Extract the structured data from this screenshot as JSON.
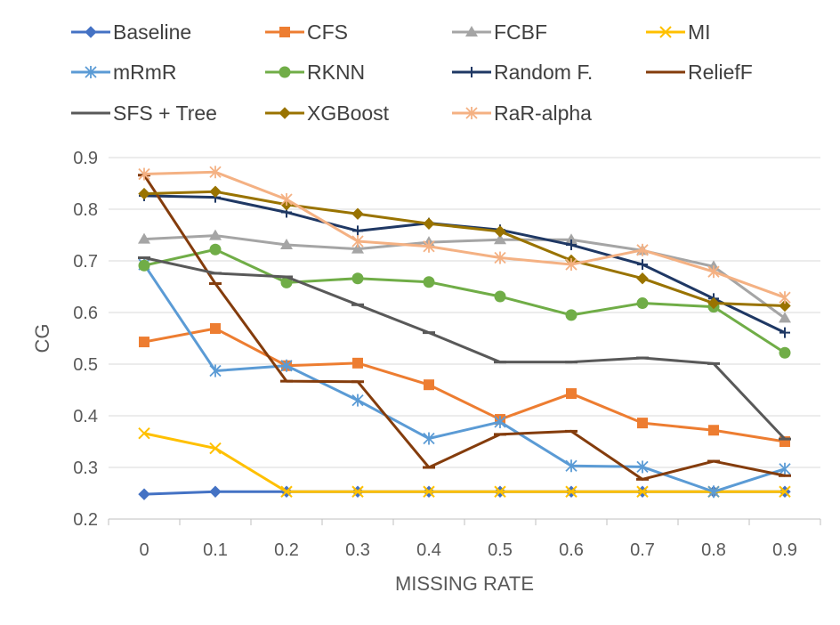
{
  "chart_data": {
    "type": "line",
    "title": "",
    "xlabel": "MISSING RATE",
    "ylabel": "CG",
    "x": [
      "0",
      "0.1",
      "0.2",
      "0.3",
      "0.4",
      "0.5",
      "0.6",
      "0.7",
      "0.8",
      "0.9"
    ],
    "ylim": [
      0.2,
      0.9
    ],
    "yticks": [
      "0.2",
      "0.3",
      "0.4",
      "0.5",
      "0.6",
      "0.7",
      "0.8",
      "0.9"
    ],
    "grid": true,
    "legend_position": "top",
    "series": [
      {
        "name": "Baseline",
        "color": "#4472C4",
        "marker": "diamond",
        "values": [
          0.248,
          0.253,
          0.253,
          0.253,
          0.253,
          0.253,
          0.253,
          0.253,
          0.253,
          0.253
        ]
      },
      {
        "name": "CFS",
        "color": "#ED7D31",
        "marker": "square",
        "values": [
          0.543,
          0.569,
          0.497,
          0.502,
          0.46,
          0.393,
          0.443,
          0.386,
          0.372,
          0.35
        ]
      },
      {
        "name": "FCBF",
        "color": "#A5A5A5",
        "marker": "triangle",
        "values": [
          0.742,
          0.749,
          0.731,
          0.723,
          0.736,
          0.741,
          0.741,
          0.72,
          0.689,
          0.589
        ]
      },
      {
        "name": "MI",
        "color": "#FFC000",
        "marker": "x",
        "values": [
          0.366,
          0.337,
          0.253,
          0.253,
          0.253,
          0.253,
          0.253,
          0.253,
          0.253,
          0.253
        ]
      },
      {
        "name": "mRmR",
        "color": "#5B9BD5",
        "marker": "asterisk",
        "values": [
          0.693,
          0.487,
          0.497,
          0.43,
          0.356,
          0.388,
          0.303,
          0.301,
          0.253,
          0.297
        ]
      },
      {
        "name": "RKNN",
        "color": "#70AD47",
        "marker": "circle",
        "values": [
          0.691,
          0.722,
          0.658,
          0.666,
          0.659,
          0.631,
          0.595,
          0.618,
          0.611,
          0.522
        ]
      },
      {
        "name": "Random F.",
        "color": "#1F3864",
        "marker": "plus",
        "values": [
          0.826,
          0.823,
          0.794,
          0.758,
          0.773,
          0.76,
          0.731,
          0.693,
          0.627,
          0.561
        ]
      },
      {
        "name": "ReliefF",
        "color": "#843C0C",
        "marker": "dash",
        "values": [
          0.866,
          0.656,
          0.467,
          0.466,
          0.3,
          0.364,
          0.37,
          0.277,
          0.312,
          0.284
        ]
      },
      {
        "name": "SFS + Tree",
        "color": "#595959",
        "marker": "dash",
        "values": [
          0.706,
          0.676,
          0.669,
          0.615,
          0.561,
          0.504,
          0.504,
          0.512,
          0.501,
          0.355
        ]
      },
      {
        "name": "XGBoost",
        "color": "#997300",
        "marker": "diamond",
        "values": [
          0.83,
          0.834,
          0.809,
          0.791,
          0.772,
          0.757,
          0.701,
          0.666,
          0.618,
          0.613
        ]
      },
      {
        "name": "RaR-alpha",
        "color": "#F4B183",
        "marker": "asterisk",
        "values": [
          0.868,
          0.872,
          0.819,
          0.738,
          0.728,
          0.706,
          0.693,
          0.721,
          0.679,
          0.629
        ]
      }
    ]
  }
}
